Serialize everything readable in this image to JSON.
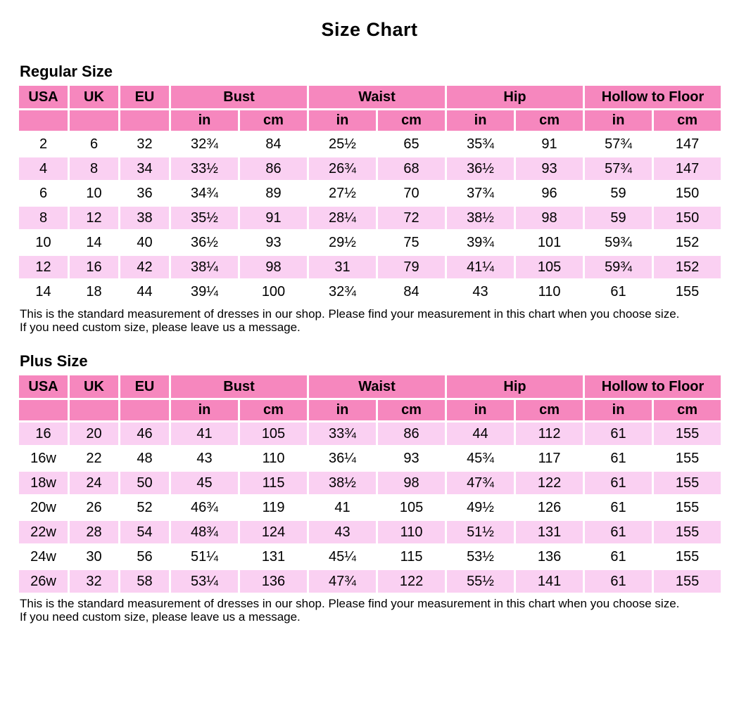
{
  "title": "Size Chart",
  "colors": {
    "header_pink": "#F687BE",
    "row_pink": "#FAD0F2",
    "row_white": "#FFFFFF",
    "text": "#000000"
  },
  "chart_data": [
    {
      "type": "table",
      "title": "Regular Size",
      "column_groups": [
        {
          "label": "USA",
          "span": 1
        },
        {
          "label": "UK",
          "span": 1
        },
        {
          "label": "EU",
          "span": 1
        },
        {
          "label": "Bust",
          "span": 2
        },
        {
          "label": "Waist",
          "span": 2
        },
        {
          "label": "Hip",
          "span": 2
        },
        {
          "label": "Hollow to Floor",
          "span": 2
        }
      ],
      "sub_headers": [
        "",
        "",
        "",
        "in",
        "cm",
        "in",
        "cm",
        "in",
        "cm",
        "in",
        "cm"
      ],
      "rows": [
        [
          "2",
          "6",
          "32",
          "32¾",
          "84",
          "25½",
          "65",
          "35¾",
          "91",
          "57¾",
          "147"
        ],
        [
          "4",
          "8",
          "34",
          "33½",
          "86",
          "26¾",
          "68",
          "36½",
          "93",
          "57¾",
          "147"
        ],
        [
          "6",
          "10",
          "36",
          "34¾",
          "89",
          "27½",
          "70",
          "37¾",
          "96",
          "59",
          "150"
        ],
        [
          "8",
          "12",
          "38",
          "35½",
          "91",
          "28¼",
          "72",
          "38½",
          "98",
          "59",
          "150"
        ],
        [
          "10",
          "14",
          "40",
          "36½",
          "93",
          "29½",
          "75",
          "39¾",
          "101",
          "59¾",
          "152"
        ],
        [
          "12",
          "16",
          "42",
          "38¼",
          "98",
          "31",
          "79",
          "41¼",
          "105",
          "59¾",
          "152"
        ],
        [
          "14",
          "18",
          "44",
          "39¼",
          "100",
          "32¾",
          "84",
          "43",
          "110",
          "61",
          "155"
        ]
      ],
      "shaded_row_indices": [
        1,
        3,
        5
      ],
      "note": [
        "This is the standard measurement of dresses in our shop. Please find your measurement in this chart when you choose size.",
        "If you need custom size, please leave us a message."
      ]
    },
    {
      "type": "table",
      "title": "Plus Size",
      "column_groups": [
        {
          "label": "USA",
          "span": 1
        },
        {
          "label": "UK",
          "span": 1
        },
        {
          "label": "EU",
          "span": 1
        },
        {
          "label": "Bust",
          "span": 2
        },
        {
          "label": "Waist",
          "span": 2
        },
        {
          "label": "Hip",
          "span": 2
        },
        {
          "label": "Hollow to Floor",
          "span": 2
        }
      ],
      "sub_headers": [
        "",
        "",
        "",
        "in",
        "cm",
        "in",
        "cm",
        "in",
        "cm",
        "in",
        "cm"
      ],
      "rows": [
        [
          "16",
          "20",
          "46",
          "41",
          "105",
          "33¾",
          "86",
          "44",
          "112",
          "61",
          "155"
        ],
        [
          "16w",
          "22",
          "48",
          "43",
          "110",
          "36¼",
          "93",
          "45¾",
          "117",
          "61",
          "155"
        ],
        [
          "18w",
          "24",
          "50",
          "45",
          "115",
          "38½",
          "98",
          "47¾",
          "122",
          "61",
          "155"
        ],
        [
          "20w",
          "26",
          "52",
          "46¾",
          "119",
          "41",
          "105",
          "49½",
          "126",
          "61",
          "155"
        ],
        [
          "22w",
          "28",
          "54",
          "48¾",
          "124",
          "43",
          "110",
          "51½",
          "131",
          "61",
          "155"
        ],
        [
          "24w",
          "30",
          "56",
          "51¼",
          "131",
          "45¼",
          "115",
          "53½",
          "136",
          "61",
          "155"
        ],
        [
          "26w",
          "32",
          "58",
          "53¼",
          "136",
          "47¾",
          "122",
          "55½",
          "141",
          "61",
          "155"
        ]
      ],
      "shaded_row_indices": [
        0,
        2,
        4,
        6
      ],
      "note": [
        "This is the standard measurement of dresses in our shop. Please find your measurement in this chart when you choose size.",
        "If you need custom size, please leave us a message."
      ]
    }
  ]
}
